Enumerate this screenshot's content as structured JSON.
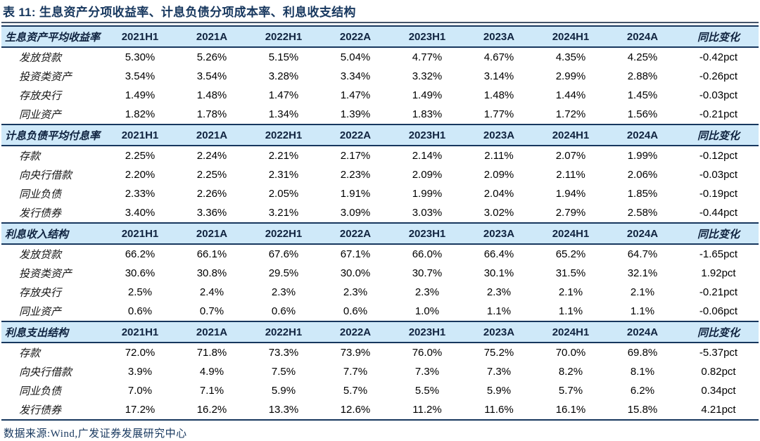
{
  "title": "表 11: 生息资产分项收益率、计息负债分项成本率、利息收支结构",
  "source": "数据来源:Wind,广发证券发展研究中心",
  "colors": {
    "band_bg": "#cfe9f9",
    "rule_navy": "#17375e",
    "title_text": "#17375e",
    "header_text": "#10233f",
    "number_text": "#000000"
  },
  "table": {
    "columns": [
      "2021H1",
      "2021A",
      "2022H1",
      "2022A",
      "2023H1",
      "2023A",
      "2024H1",
      "2024A",
      "同比变化"
    ],
    "sections": [
      {
        "label": "生息资产平均收益率",
        "rows": [
          {
            "label": "发放贷款",
            "values": [
              "5.30%",
              "5.26%",
              "5.15%",
              "5.04%",
              "4.77%",
              "4.67%",
              "4.35%",
              "4.25%",
              "-0.42pct"
            ]
          },
          {
            "label": "投资类资产",
            "values": [
              "3.54%",
              "3.54%",
              "3.28%",
              "3.34%",
              "3.32%",
              "3.14%",
              "2.99%",
              "2.88%",
              "-0.26pct"
            ]
          },
          {
            "label": "存放央行",
            "values": [
              "1.49%",
              "1.48%",
              "1.47%",
              "1.47%",
              "1.49%",
              "1.48%",
              "1.44%",
              "1.45%",
              "-0.03pct"
            ]
          },
          {
            "label": "同业资产",
            "values": [
              "1.82%",
              "1.78%",
              "1.34%",
              "1.39%",
              "1.83%",
              "1.77%",
              "1.72%",
              "1.56%",
              "-0.21pct"
            ]
          }
        ]
      },
      {
        "label": "计息负债平均付息率",
        "rows": [
          {
            "label": "存款",
            "values": [
              "2.25%",
              "2.24%",
              "2.21%",
              "2.17%",
              "2.14%",
              "2.11%",
              "2.07%",
              "1.99%",
              "-0.12pct"
            ]
          },
          {
            "label": "向央行借款",
            "values": [
              "2.20%",
              "2.25%",
              "2.31%",
              "2.23%",
              "2.09%",
              "2.09%",
              "2.11%",
              "2.06%",
              "-0.03pct"
            ]
          },
          {
            "label": "同业负债",
            "values": [
              "2.33%",
              "2.26%",
              "2.05%",
              "1.91%",
              "1.99%",
              "2.04%",
              "1.94%",
              "1.85%",
              "-0.19pct"
            ]
          },
          {
            "label": "发行债券",
            "values": [
              "3.40%",
              "3.36%",
              "3.21%",
              "3.09%",
              "3.03%",
              "3.02%",
              "2.79%",
              "2.58%",
              "-0.44pct"
            ]
          }
        ]
      },
      {
        "label": "利息收入结构",
        "rows": [
          {
            "label": "发放贷款",
            "values": [
              "66.2%",
              "66.1%",
              "67.6%",
              "67.1%",
              "66.0%",
              "66.4%",
              "65.2%",
              "64.7%",
              "-1.65pct"
            ]
          },
          {
            "label": "投资类资产",
            "values": [
              "30.6%",
              "30.8%",
              "29.5%",
              "30.0%",
              "30.7%",
              "30.1%",
              "31.5%",
              "32.1%",
              "1.92pct"
            ]
          },
          {
            "label": "存放央行",
            "values": [
              "2.5%",
              "2.4%",
              "2.3%",
              "2.3%",
              "2.3%",
              "2.3%",
              "2.1%",
              "2.1%",
              "-0.21pct"
            ]
          },
          {
            "label": "同业资产",
            "values": [
              "0.6%",
              "0.7%",
              "0.6%",
              "0.6%",
              "1.0%",
              "1.1%",
              "1.1%",
              "1.1%",
              "-0.06pct"
            ]
          }
        ]
      },
      {
        "label": "利息支出结构",
        "rows": [
          {
            "label": "存款",
            "values": [
              "72.0%",
              "71.8%",
              "73.3%",
              "73.9%",
              "76.0%",
              "75.2%",
              "70.0%",
              "69.8%",
              "-5.37pct"
            ]
          },
          {
            "label": "向央行借款",
            "values": [
              "3.9%",
              "4.9%",
              "7.5%",
              "7.7%",
              "7.3%",
              "7.3%",
              "8.2%",
              "8.1%",
              "0.82pct"
            ]
          },
          {
            "label": "同业负债",
            "values": [
              "7.0%",
              "7.1%",
              "5.9%",
              "5.7%",
              "5.5%",
              "5.9%",
              "5.7%",
              "6.2%",
              "0.34pct"
            ]
          },
          {
            "label": "发行债券",
            "values": [
              "17.2%",
              "16.2%",
              "13.3%",
              "12.6%",
              "11.2%",
              "11.6%",
              "16.1%",
              "15.8%",
              "4.21pct"
            ]
          }
        ]
      }
    ]
  }
}
